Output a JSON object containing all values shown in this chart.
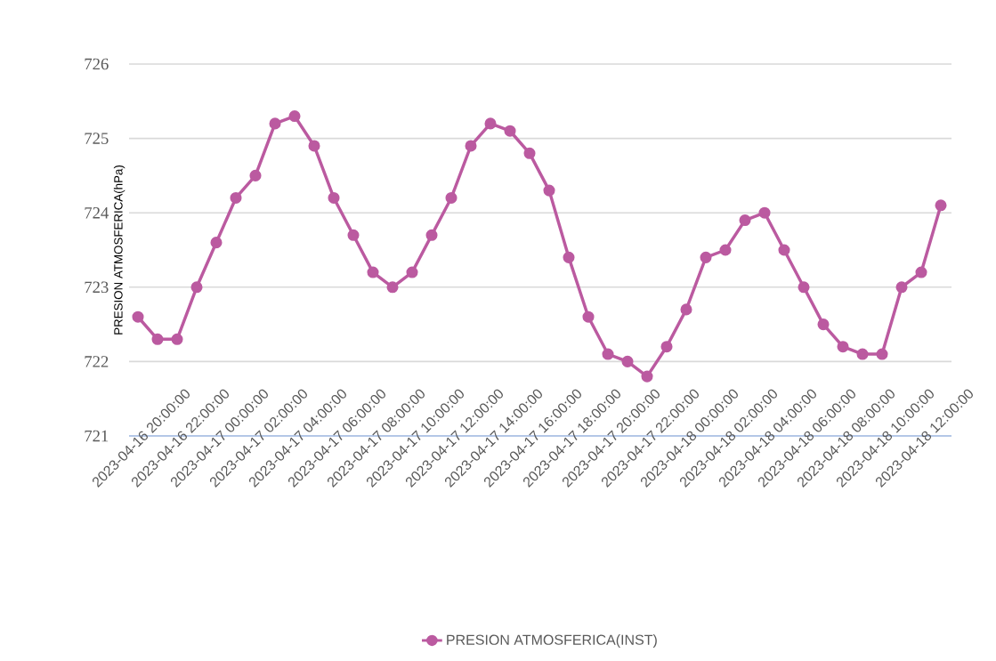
{
  "chart_data": {
    "type": "line",
    "ylabel": "PRESION ATMOSFERICA(hPa)",
    "categories": [
      "2023-04-16 20:00:00",
      null,
      "2023-04-16 22:00:00",
      null,
      "2023-04-17 00:00:00",
      null,
      "2023-04-17 02:00:00",
      null,
      "2023-04-17 04:00:00",
      null,
      "2023-04-17 06:00:00",
      null,
      "2023-04-17 08:00:00",
      null,
      "2023-04-17 10:00:00",
      null,
      "2023-04-17 12:00:00",
      null,
      "2023-04-17 14:00:00",
      null,
      "2023-04-17 16:00:00",
      null,
      "2023-04-17 18:00:00",
      null,
      "2023-04-17 20:00:00",
      null,
      "2023-04-17 22:00:00",
      null,
      "2023-04-18 00:00:00",
      null,
      "2023-04-18 02:00:00",
      null,
      "2023-04-18 04:00:00",
      null,
      "2023-04-18 06:00:00",
      null,
      "2023-04-18 08:00:00",
      null,
      "2023-04-18 10:00:00",
      null,
      "2023-04-18 12:00:00",
      null
    ],
    "series": [
      {
        "name": "PRESION ATMOSFERICA(INST)",
        "color": "#bb5aa0",
        "values": [
          722.6,
          722.3,
          722.3,
          723.0,
          723.6,
          724.2,
          724.5,
          725.2,
          725.3,
          724.9,
          724.2,
          723.7,
          723.2,
          723.0,
          723.2,
          723.7,
          724.2,
          724.9,
          725.2,
          725.1,
          724.8,
          724.3,
          723.4,
          722.6,
          722.1,
          722.0,
          721.8,
          722.2,
          722.7,
          723.4,
          723.5,
          723.9,
          724.0,
          723.5,
          723.0,
          722.5,
          722.2,
          722.1,
          722.1,
          723.0,
          723.2,
          724.1
        ]
      }
    ],
    "ylim": [
      721,
      726
    ],
    "yticks": [
      721,
      722,
      723,
      724,
      725,
      726
    ],
    "grid": "y",
    "legend": "bottom",
    "marker": "circle",
    "line_style": "solid"
  }
}
